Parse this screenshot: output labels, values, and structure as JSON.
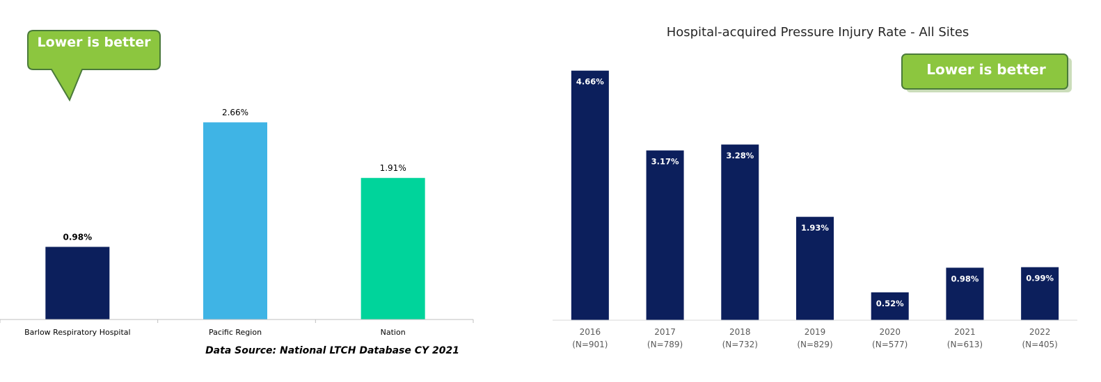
{
  "left_chart": {
    "callout": "Lower is better",
    "source": "Data Source: National LTCH Database CY 2021"
  },
  "right_chart": {
    "title": "Hospital-acquired Pressure Injury Rate - All Sites",
    "callout": "Lower is better"
  },
  "colors": {
    "navy": "#0c1f5c",
    "sky_blue": "#3fb4e5",
    "teal": "#00d49b",
    "callout_green": "#8cc63f",
    "callout_border": "#4a7a3a"
  },
  "chart_data": [
    {
      "type": "bar",
      "categories": [
        "Barlow Respiratory Hospital",
        "Pacific Region",
        "Nation"
      ],
      "values": [
        0.98,
        2.66,
        1.91
      ],
      "value_labels": [
        "0.98%",
        "2.66%",
        "1.91%"
      ],
      "colors": [
        "#0c1f5c",
        "#3fb4e5",
        "#00d49b"
      ],
      "title": "",
      "xlabel": "",
      "ylabel": "",
      "ylim": [
        0,
        3.0
      ],
      "grid": false,
      "legend": "none"
    },
    {
      "type": "bar",
      "categories": [
        "2016",
        "2017",
        "2018",
        "2019",
        "2020",
        "2021",
        "2022"
      ],
      "sublabels": [
        "(N=901)",
        "(N=789)",
        "(N=732)",
        "(N=829)",
        "(N=577)",
        "(N=613)",
        "(N=405)"
      ],
      "values": [
        4.66,
        3.17,
        3.28,
        1.93,
        0.52,
        0.98,
        0.99
      ],
      "value_labels": [
        "4.66%",
        "3.17%",
        "3.28%",
        "1.93%",
        "0.52%",
        "0.98%",
        "0.99%"
      ],
      "color": "#0c1f5c",
      "title": "Hospital-acquired Pressure Injury Rate - All Sites",
      "xlabel": "",
      "ylabel": "",
      "ylim": [
        0,
        5.0
      ],
      "grid": false,
      "legend": "none"
    }
  ]
}
